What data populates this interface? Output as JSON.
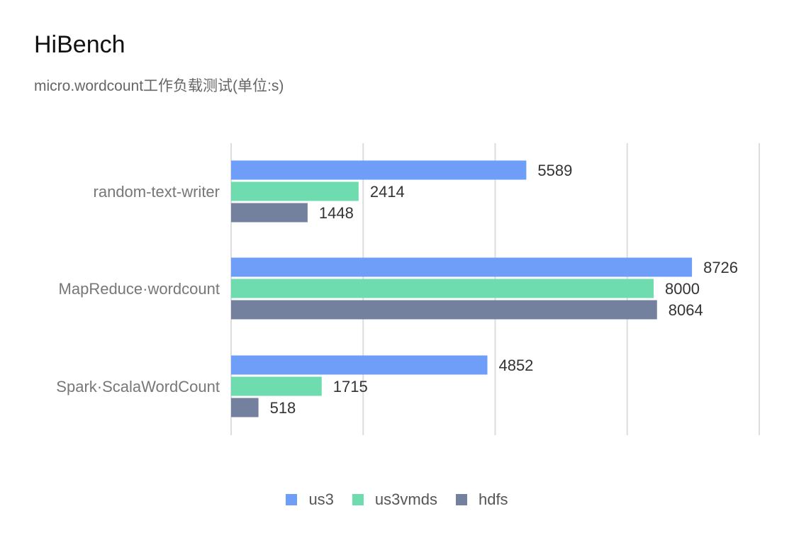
{
  "chart_data": {
    "type": "bar",
    "orientation": "horizontal",
    "title": "HiBench",
    "subtitle": "micro.wordcount工作负载测试(单位:s)",
    "categories": [
      "random-text-writer",
      "MapReduce·wordcount",
      "Spark·ScalaWordCount"
    ],
    "series": [
      {
        "name": "us3",
        "color": "#6e9ef8",
        "values": [
          5589,
          8726,
          4852
        ]
      },
      {
        "name": "us3vmds",
        "color": "#6fdcb0",
        "values": [
          2414,
          8000,
          1715
        ]
      },
      {
        "name": "hdfs",
        "color": "#73819f",
        "values": [
          1448,
          8064,
          518
        ]
      }
    ],
    "xlim": [
      0,
      10000
    ],
    "grid": true,
    "data_labels": true,
    "legend": "bottom-center"
  }
}
